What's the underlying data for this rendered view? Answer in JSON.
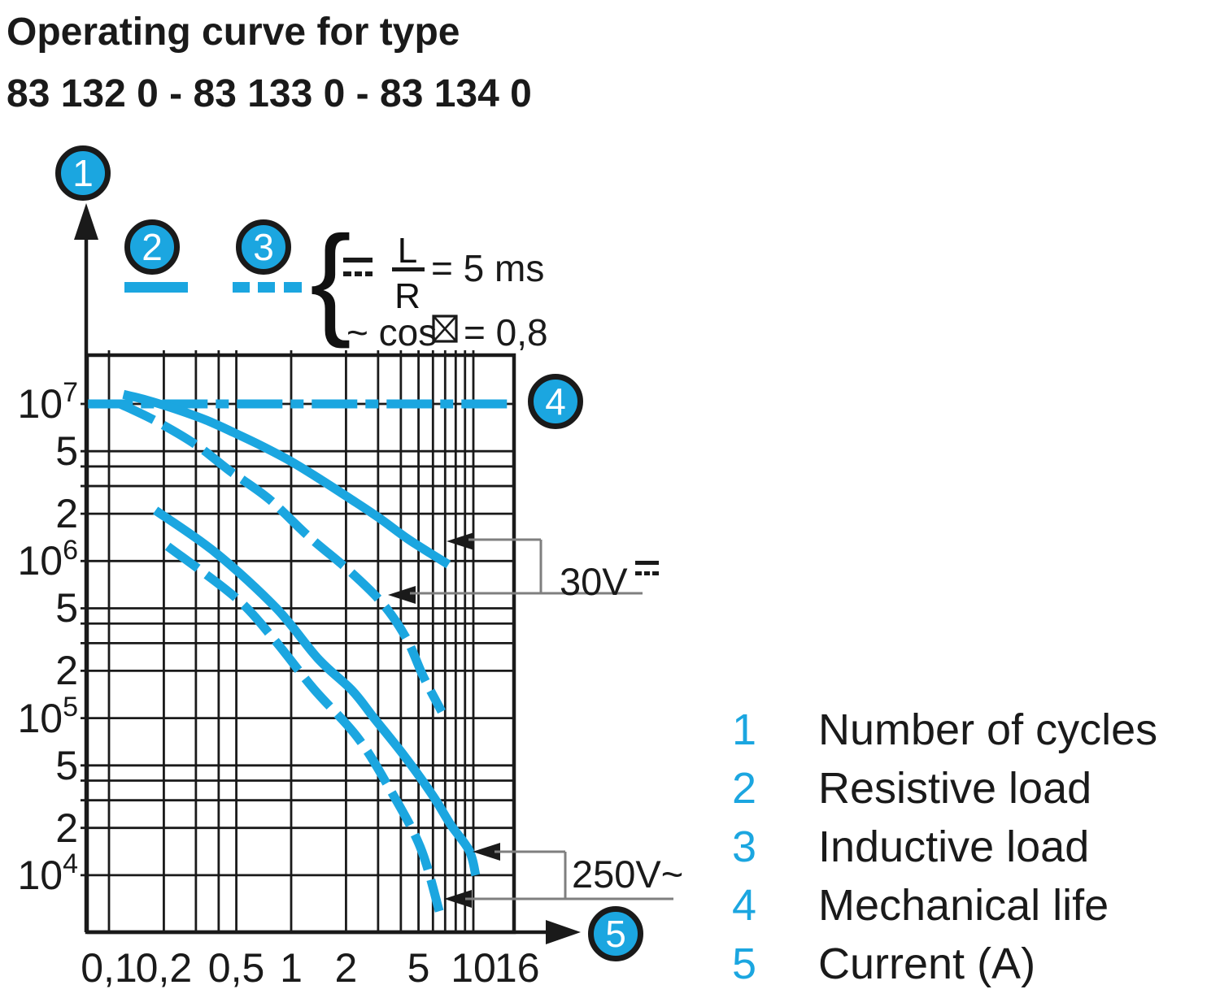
{
  "title": {
    "line1": "Operating curve for type",
    "line2": "83 132 0 - 83 133 0 - 83 134 0"
  },
  "callouts": {
    "c1": "1",
    "c2": "2",
    "c3": "3",
    "c4": "4",
    "c5": "5"
  },
  "conditions": {
    "brace": "{",
    "dc_row": {
      "fraction_num": "L",
      "fraction_den": "R",
      "value": "= 5 ms"
    },
    "ac_row": {
      "prefix": "~ cos",
      "value": "= 0,8"
    }
  },
  "annotations": {
    "dc_load": "30V",
    "ac_load": "250V~"
  },
  "legend": [
    {
      "num": "1",
      "label": "Number of cycles"
    },
    {
      "num": "2",
      "label": "Resistive load"
    },
    {
      "num": "3",
      "label": "Inductive load"
    },
    {
      "num": "4",
      "label": "Mechanical life"
    },
    {
      "num": "5",
      "label": "Current (A)"
    }
  ],
  "colors": {
    "accent": "#1BA6E0",
    "black": "#1a1a1a",
    "gray": "#7f7f7f"
  },
  "chart_data": {
    "type": "line",
    "x_scale": "log",
    "y_scale": "log",
    "xlabel": "Current (A)",
    "ylabel": "Number of cycles",
    "xlim": [
      0.076,
      16
    ],
    "ylim": [
      4300,
      20400000
    ],
    "grid": true,
    "x_ticks": [
      {
        "v": 0.1,
        "label": "0,1"
      },
      {
        "v": 0.2,
        "label": "0,2"
      },
      {
        "v": 0.5,
        "label": "0,5"
      },
      {
        "v": 1,
        "label": "1"
      },
      {
        "v": 2,
        "label": "2"
      },
      {
        "v": 5,
        "label": "5"
      },
      {
        "v": 10,
        "label": "10"
      },
      {
        "v": 16,
        "label": "16"
      }
    ],
    "y_ticks": [
      {
        "v": 10000000,
        "base": "10",
        "sup": "7"
      },
      {
        "v": 5000000,
        "base": "5"
      },
      {
        "v": 2000000,
        "base": "2"
      },
      {
        "v": 1000000,
        "base": "10",
        "sup": "6"
      },
      {
        "v": 500000,
        "base": "5"
      },
      {
        "v": 200000,
        "base": "2"
      },
      {
        "v": 100000,
        "base": "10",
        "sup": "5"
      },
      {
        "v": 50000,
        "base": "5"
      },
      {
        "v": 20000,
        "base": "2"
      },
      {
        "v": 10000,
        "base": "10",
        "sup": "4"
      }
    ],
    "x_grid": [
      0.1,
      0.2,
      0.3,
      0.4,
      0.5,
      1,
      2,
      3,
      4,
      5,
      6,
      7,
      8,
      9,
      10,
      16
    ],
    "y_grid": [
      10000000,
      5000000,
      4000000,
      3000000,
      2000000,
      1000000,
      500000,
      400000,
      300000,
      200000,
      100000,
      50000,
      40000,
      30000,
      20000,
      10000
    ],
    "series": [
      {
        "name": "Mechanical life",
        "style": "dashdot",
        "points": [
          [
            0.076,
            10000000
          ],
          [
            16,
            10000000
          ]
        ]
      },
      {
        "name": "Resistive load 30V DC",
        "style": "solid",
        "points": [
          [
            0.12,
            11500000
          ],
          [
            0.16,
            10600000
          ],
          [
            0.23,
            9300000
          ],
          [
            0.34,
            7900000
          ],
          [
            0.48,
            6600000
          ],
          [
            0.69,
            5400000
          ],
          [
            1.0,
            4300000
          ],
          [
            1.45,
            3300000
          ],
          [
            2.1,
            2500000
          ],
          [
            3.0,
            1900000
          ],
          [
            4.3,
            1400000
          ],
          [
            5.8,
            1120000
          ],
          [
            7.3,
            950000
          ]
        ]
      },
      {
        "name": "Inductive load 30V DC",
        "style": "dashed",
        "points": [
          [
            0.115,
            10000000
          ],
          [
            0.18,
            7800000
          ],
          [
            0.3,
            5500000
          ],
          [
            0.46,
            3750000
          ],
          [
            0.75,
            2500000
          ],
          [
            1.25,
            1430000
          ],
          [
            2.1,
            860000
          ],
          [
            3.2,
            530000
          ],
          [
            4.3,
            320000
          ],
          [
            5.3,
            185000
          ],
          [
            6.7,
            110000
          ]
        ]
      },
      {
        "name": "Resistive load 250V AC",
        "style": "solid",
        "points": [
          [
            0.18,
            2100000
          ],
          [
            0.385,
            1130000
          ],
          [
            0.83,
            500000
          ],
          [
            1.4,
            240000
          ],
          [
            2.16,
            150000
          ],
          [
            2.85,
            100000
          ],
          [
            4.2,
            57000
          ],
          [
            6.0,
            32000
          ],
          [
            7.5,
            21000
          ],
          [
            9.5,
            14300
          ],
          [
            10.3,
            10000
          ]
        ]
      },
      {
        "name": "Inductive load 250V AC",
        "style": "dashed",
        "points": [
          [
            0.21,
            1240000
          ],
          [
            0.5,
            580000
          ],
          [
            0.8,
            320000
          ],
          [
            1.32,
            155000
          ],
          [
            2.3,
            76000
          ],
          [
            3.4,
            37000
          ],
          [
            5.1,
            15200
          ],
          [
            6.5,
            5900
          ]
        ]
      }
    ]
  }
}
